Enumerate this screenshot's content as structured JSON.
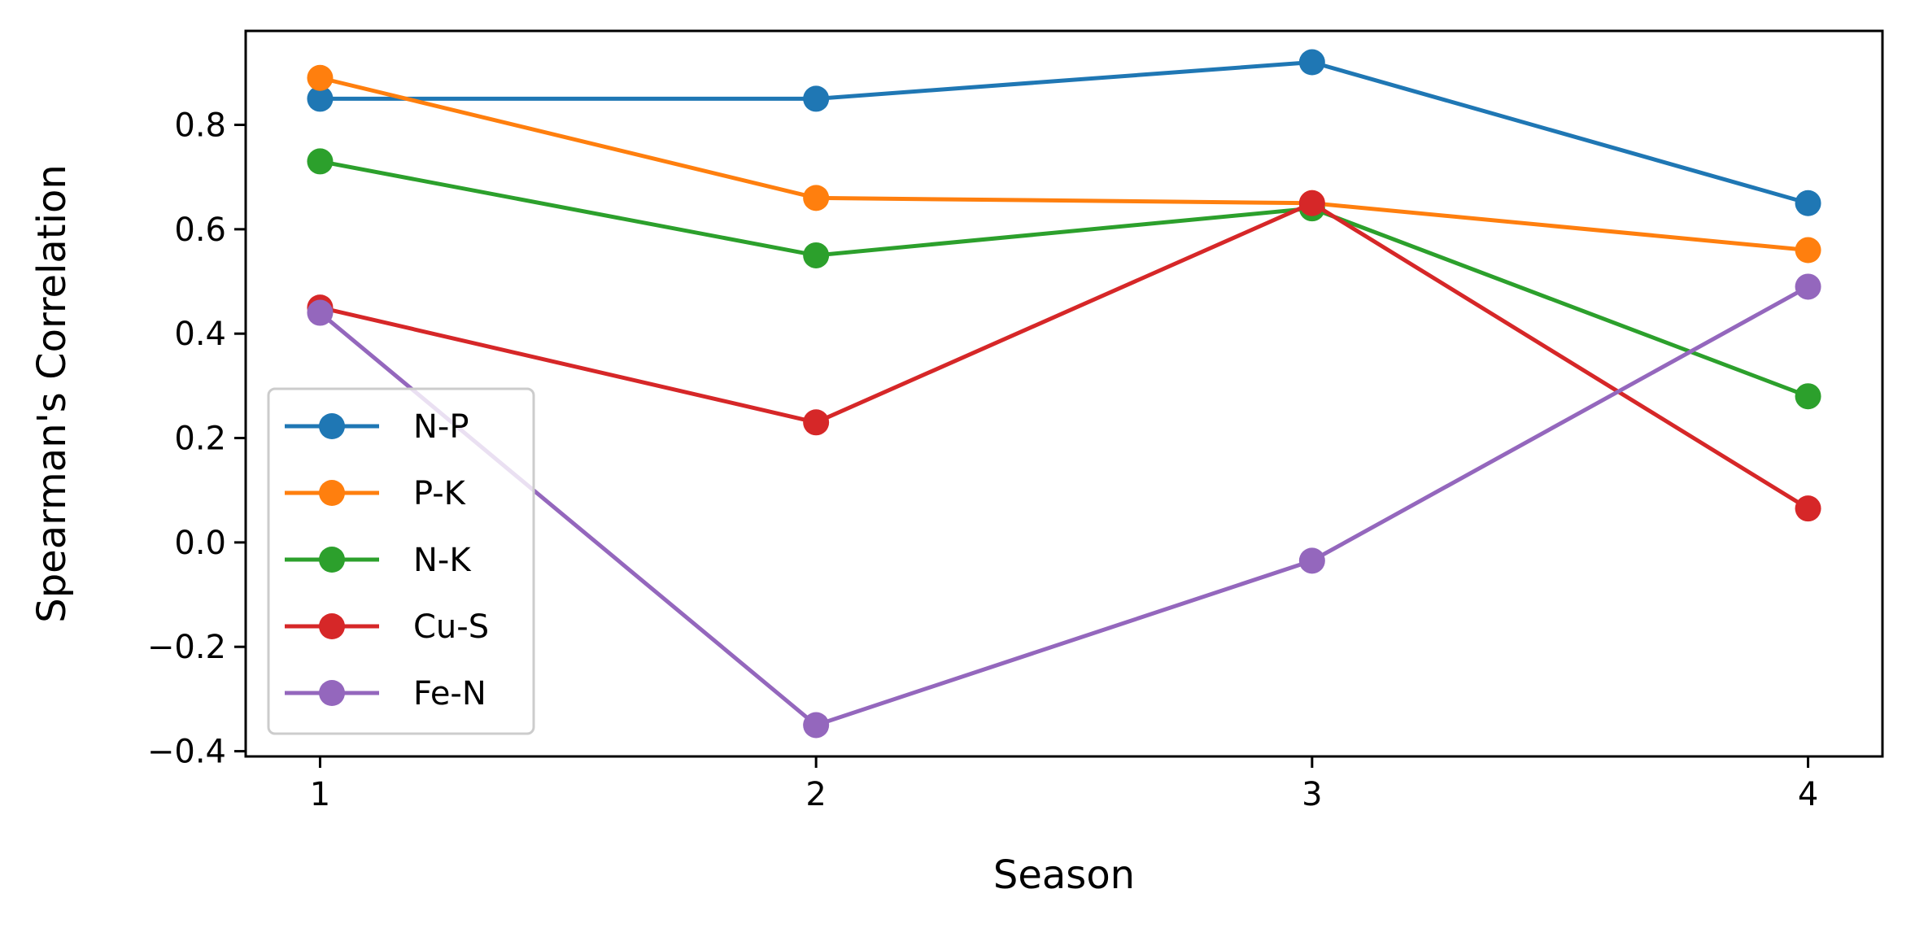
{
  "chart_data": {
    "type": "line",
    "title": "",
    "xlabel": "Season",
    "ylabel": "Spearman's Correlation",
    "x": [
      1,
      2,
      3,
      4
    ],
    "xticks": [
      "1",
      "2",
      "3",
      "4"
    ],
    "xlim": [
      0.85,
      4.15
    ],
    "ylim": [
      -0.41,
      0.98
    ],
    "yticks": [
      -0.4,
      -0.2,
      0.0,
      0.2,
      0.4,
      0.6,
      0.8
    ],
    "ytick_labels": [
      "−0.4",
      "−0.2",
      "0.0",
      "0.2",
      "0.4",
      "0.6",
      "0.8"
    ],
    "grid": false,
    "legend_position": "bottom-left",
    "series": [
      {
        "name": "N-P",
        "color": "#1f77b4",
        "values": [
          0.85,
          0.85,
          0.92,
          0.65
        ]
      },
      {
        "name": "P-K",
        "color": "#ff7f0e",
        "values": [
          0.89,
          0.66,
          0.65,
          0.56
        ]
      },
      {
        "name": "N-K",
        "color": "#2ca02c",
        "values": [
          0.73,
          0.55,
          0.64,
          0.28
        ]
      },
      {
        "name": "Cu-S",
        "color": "#d62728",
        "values": [
          0.45,
          0.23,
          0.65,
          0.065
        ]
      },
      {
        "name": "Fe-N",
        "color": "#9467bd",
        "values": [
          0.44,
          -0.35,
          -0.035,
          0.49
        ]
      }
    ]
  }
}
